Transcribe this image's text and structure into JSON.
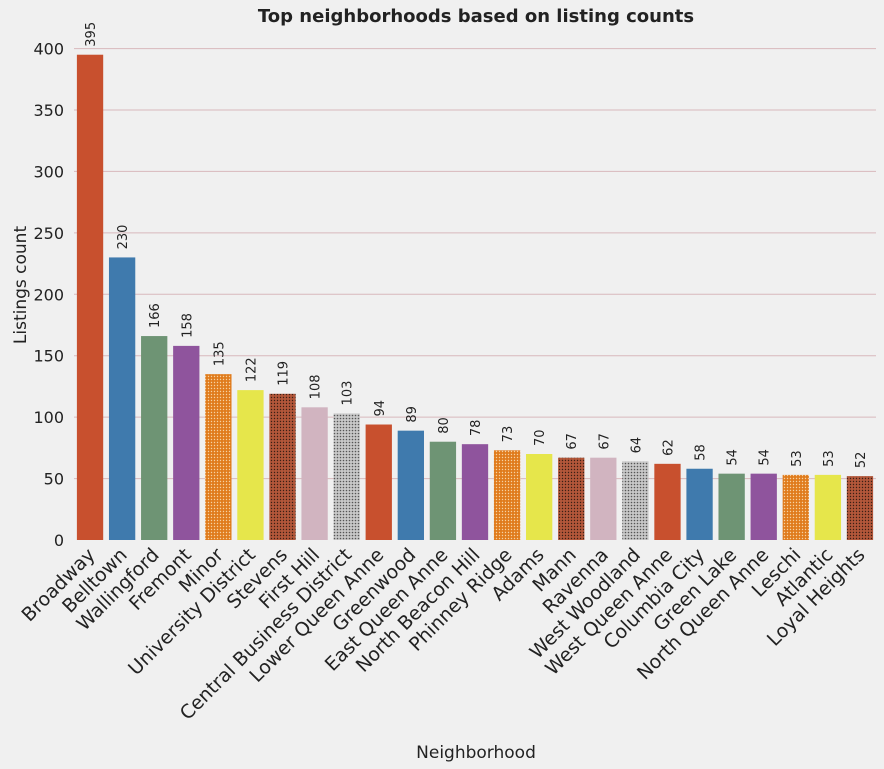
{
  "chart_data": {
    "type": "bar",
    "title": "Top neighborhoods based on listing counts",
    "xlabel": "Neighborhood",
    "ylabel": "Listings count",
    "ylim": [
      0,
      420
    ],
    "yticks": [
      0,
      50,
      100,
      150,
      200,
      250,
      300,
      350,
      400
    ],
    "grid": true,
    "categories": [
      "Broadway",
      "Belltown",
      "Wallingford",
      "Fremont",
      "Minor",
      "University District",
      "Stevens",
      "First Hill",
      "Central Business District",
      "Lower Queen Anne",
      "Greenwood",
      "East Queen Anne",
      "North Beacon Hill",
      "Phinney Ridge",
      "Adams",
      "Mann",
      "Ravenna",
      "West Woodland",
      "West Queen Anne",
      "Columbia City",
      "Green Lake",
      "North Queen Anne",
      "Leschi",
      "Atlantic",
      "Loyal Heights"
    ],
    "values": [
      395,
      230,
      166,
      158,
      135,
      122,
      119,
      108,
      103,
      94,
      89,
      80,
      78,
      73,
      70,
      67,
      67,
      64,
      62,
      58,
      54,
      54,
      53,
      53,
      52
    ],
    "data_labels": [
      "395",
      "230",
      "166",
      "158",
      "135",
      "122",
      "119",
      "108",
      "103",
      "94",
      "89",
      "80",
      "78",
      "73",
      "70",
      "67",
      "67",
      "64",
      "62",
      "58",
      "54",
      "54",
      "53",
      "53",
      "52"
    ],
    "colors": [
      "#c8502e",
      "#3f7aad",
      "#6e9474",
      "#8f549d",
      "#e07b1c",
      "#e6e64b",
      "#b3573a",
      "#d1b4c0",
      "#a0a0a0"
    ],
    "patterns": [
      "solid",
      "solid",
      "solid",
      "solid",
      "dots-orange",
      "solid",
      "dots-brown",
      "solid",
      "dots-gray"
    ]
  }
}
